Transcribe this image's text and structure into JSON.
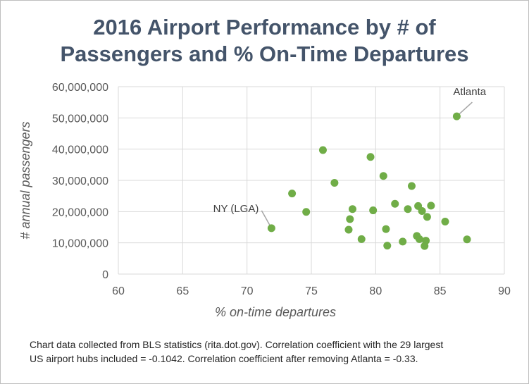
{
  "chart_data": {
    "type": "scatter",
    "title_lines": [
      "2016 Airport Performance by # of",
      "Passengers and % On-Time Departures"
    ],
    "xlabel": "% on-time departures",
    "ylabel": "# annual passengers",
    "xlim": [
      60,
      90
    ],
    "ylim": [
      0,
      60000000
    ],
    "x_ticks": [
      60,
      65,
      70,
      75,
      80,
      85,
      90
    ],
    "x_tick_labels": [
      "60",
      "65",
      "70",
      "75",
      "80",
      "85",
      "90"
    ],
    "y_ticks": [
      0,
      10000000,
      20000000,
      30000000,
      40000000,
      50000000,
      60000000
    ],
    "y_tick_labels": [
      "0",
      "10,000,000",
      "20,000,000",
      "30,000,000",
      "40,000,000",
      "50,000,000",
      "60,000,000"
    ],
    "grid": "vertical and horizontal major gridlines",
    "marker_color": "#70ad47",
    "points": [
      {
        "x": 86.3,
        "y": 50500000,
        "label": "Atlanta"
      },
      {
        "x": 71.9,
        "y": 14700000,
        "label": "NY (LGA)"
      },
      {
        "x": 73.5,
        "y": 25800000
      },
      {
        "x": 74.6,
        "y": 19900000
      },
      {
        "x": 75.9,
        "y": 39700000
      },
      {
        "x": 76.8,
        "y": 29200000
      },
      {
        "x": 77.9,
        "y": 14200000
      },
      {
        "x": 78.0,
        "y": 17600000
      },
      {
        "x": 78.2,
        "y": 20800000
      },
      {
        "x": 78.9,
        "y": 11200000
      },
      {
        "x": 79.6,
        "y": 37500000
      },
      {
        "x": 79.8,
        "y": 20400000
      },
      {
        "x": 80.6,
        "y": 31400000
      },
      {
        "x": 80.8,
        "y": 14400000
      },
      {
        "x": 80.9,
        "y": 9100000
      },
      {
        "x": 81.5,
        "y": 22500000
      },
      {
        "x": 82.1,
        "y": 10400000
      },
      {
        "x": 82.5,
        "y": 20800000
      },
      {
        "x": 82.8,
        "y": 28200000
      },
      {
        "x": 83.2,
        "y": 12200000
      },
      {
        "x": 83.3,
        "y": 21800000
      },
      {
        "x": 83.4,
        "y": 11200000
      },
      {
        "x": 83.6,
        "y": 20200000
      },
      {
        "x": 83.8,
        "y": 9000000
      },
      {
        "x": 83.9,
        "y": 10700000
      },
      {
        "x": 84.0,
        "y": 18300000
      },
      {
        "x": 84.3,
        "y": 21900000
      },
      {
        "x": 85.4,
        "y": 16800000
      },
      {
        "x": 87.1,
        "y": 11100000
      }
    ]
  },
  "caption": {
    "line1": "Chart data collected from BLS statistics (rita.dot.gov).  Correlation coefficient with the 29 largest",
    "line2": "US airport hubs included = -0.1042. Correlation coefficient after removing Atlanta = -0.33."
  },
  "colors": {
    "title": "#44546a",
    "axis_text": "#595959",
    "gridline": "#d9d9d9",
    "callout_text": "#404040",
    "callout_line": "#a6a6a6"
  }
}
